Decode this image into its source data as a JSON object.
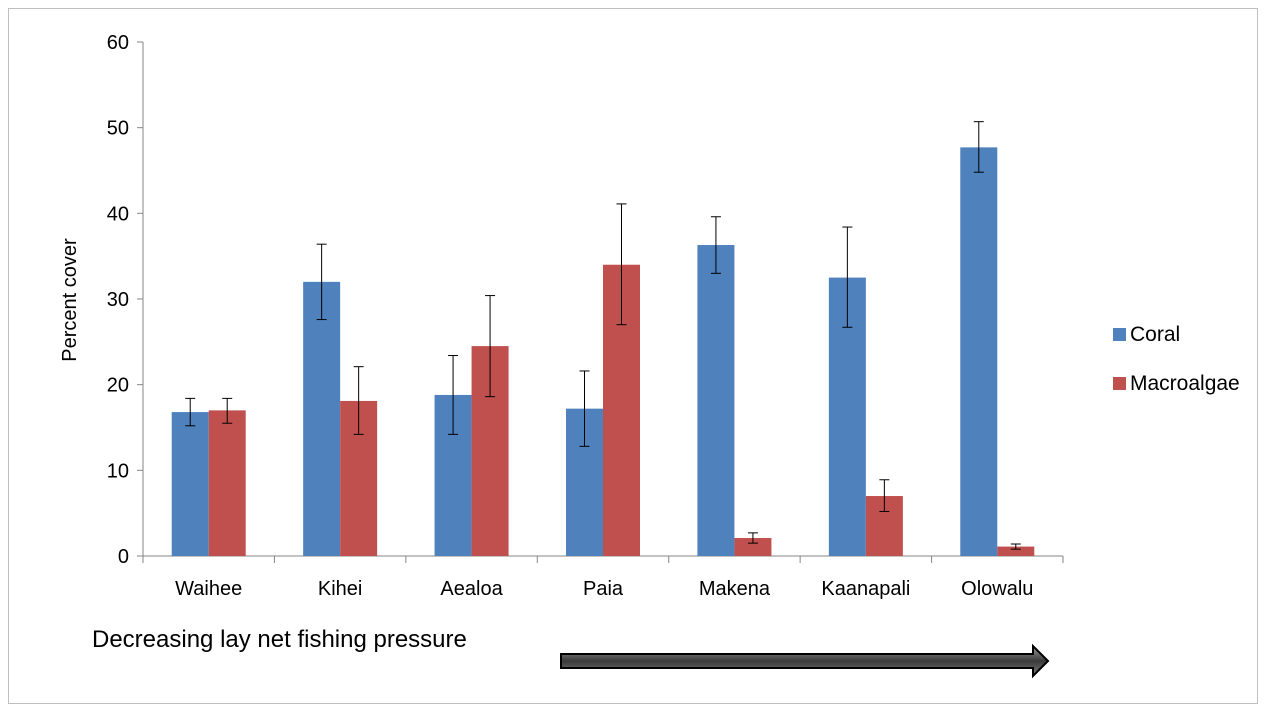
{
  "chart_data": {
    "type": "bar",
    "categories": [
      "Waihee",
      "Kihei",
      "Aealoa",
      "Paia",
      "Makena",
      "Kaanapali",
      "Olowalu"
    ],
    "series": [
      {
        "name": "Coral",
        "color": "#4f81bd",
        "values": [
          16.8,
          32.0,
          18.8,
          17.2,
          36.3,
          32.5,
          47.7
        ],
        "error_low": [
          15.2,
          27.6,
          14.2,
          12.8,
          33.0,
          26.7,
          44.8
        ],
        "error_high": [
          18.4,
          36.4,
          23.4,
          21.6,
          39.6,
          38.4,
          50.7
        ]
      },
      {
        "name": "Macroalgae",
        "color": "#c0504d",
        "values": [
          17.0,
          18.1,
          24.5,
          34.0,
          2.1,
          7.0,
          1.1
        ],
        "error_low": [
          15.5,
          14.2,
          18.6,
          27.0,
          1.5,
          5.2,
          0.8
        ],
        "error_high": [
          18.4,
          22.1,
          30.4,
          41.1,
          2.7,
          8.9,
          1.4
        ]
      }
    ],
    "ylabel": "Percent cover",
    "xlabel": "",
    "ylim": [
      0,
      60
    ],
    "yticks": [
      "0",
      "10",
      "20",
      "30",
      "40",
      "50",
      "60"
    ],
    "grid": false,
    "legend_position": "right",
    "annotation": "Decreasing lay net fishing pressure",
    "arrow_color": "#4d4d4d"
  }
}
